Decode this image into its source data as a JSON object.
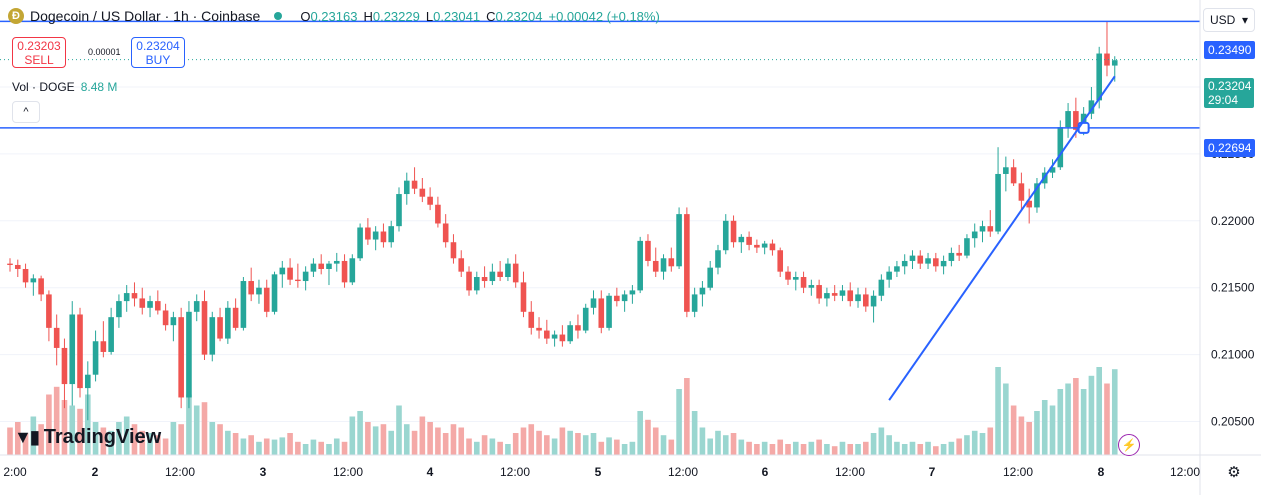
{
  "header": {
    "coin_glyph": "Ð",
    "title": "Dogecoin / US Dollar · 1h · Coinbase",
    "ohlc": [
      {
        "k": "O",
        "v": "0.23163"
      },
      {
        "k": "H",
        "v": "0.23229"
      },
      {
        "k": "L",
        "v": "0.23041"
      },
      {
        "k": "C",
        "v": "0.23204"
      },
      {
        "k": "",
        "v": "+0.00042 (+0.18%)"
      }
    ]
  },
  "trade": {
    "sell_price": "0.23203",
    "sell_label": "SELL",
    "buy_price": "0.23204",
    "buy_label": "BUY",
    "spread": "0.00001"
  },
  "volume_legend": {
    "label": "Vol · DOGE",
    "value": "8.48 M"
  },
  "currency": "USD",
  "collapse_glyph": "^",
  "gear_glyph": "⚙",
  "flash_glyph": "⚡",
  "branding": {
    "mark": "𝟭𝟳",
    "name": "TradingView"
  },
  "price_labels": {
    "upper_line": "0.23490",
    "lower_line": "0.22694",
    "last_price": "0.23204",
    "countdown": "29:04"
  },
  "colors": {
    "up": "#26a69a",
    "down": "#ef5350",
    "vol_up": "#9ad6d0",
    "vol_down": "#f4a9a7",
    "line": "#2962ff"
  },
  "chart_data": {
    "type": "candlestick",
    "symbol": "DOGE/USD",
    "interval": "1h",
    "ylim": [
      0.2025,
      0.2365
    ],
    "y_ticks": [
      0.205,
      0.21,
      0.215,
      0.22,
      0.225,
      0.23
    ],
    "y_tick_labels": [
      "0.20500",
      "0.21000",
      "0.21500",
      "0.22000",
      "0.22500",
      "0.23000"
    ],
    "x_ticks": [
      "2:00",
      "2",
      "12:00",
      "3",
      "12:00",
      "4",
      "12:00",
      "5",
      "12:00",
      "6",
      "12:00",
      "7",
      "12:00",
      "8",
      "12:00"
    ],
    "horizontal_lines": [
      0.2349,
      0.22694
    ],
    "trendline": {
      "from_bar": 113,
      "from": 0.2066,
      "to_bar": 142,
      "to": 0.2308
    },
    "last_price": 0.23204,
    "candles": [
      [
        0.2168,
        0.2172,
        0.2162,
        0.2167
      ],
      [
        0.2167,
        0.2171,
        0.2158,
        0.2164
      ],
      [
        0.2164,
        0.2168,
        0.215,
        0.2154
      ],
      [
        0.2154,
        0.216,
        0.2144,
        0.2157
      ],
      [
        0.2157,
        0.2159,
        0.214,
        0.2145
      ],
      [
        0.2145,
        0.2148,
        0.211,
        0.212
      ],
      [
        0.212,
        0.213,
        0.2092,
        0.2105
      ],
      [
        0.2105,
        0.2112,
        0.206,
        0.2078
      ],
      [
        0.2078,
        0.214,
        0.2062,
        0.213
      ],
      [
        0.213,
        0.2135,
        0.2068,
        0.2075
      ],
      [
        0.2075,
        0.2095,
        0.2051,
        0.2085
      ],
      [
        0.2085,
        0.2118,
        0.208,
        0.211
      ],
      [
        0.211,
        0.2125,
        0.2098,
        0.2102
      ],
      [
        0.2102,
        0.2135,
        0.21,
        0.2128
      ],
      [
        0.2128,
        0.2145,
        0.212,
        0.214
      ],
      [
        0.214,
        0.2152,
        0.2132,
        0.2146
      ],
      [
        0.2146,
        0.2154,
        0.2136,
        0.2142
      ],
      [
        0.2142,
        0.215,
        0.213,
        0.2135
      ],
      [
        0.2135,
        0.2144,
        0.2128,
        0.214
      ],
      [
        0.214,
        0.2148,
        0.213,
        0.2133
      ],
      [
        0.2133,
        0.2138,
        0.2118,
        0.2122
      ],
      [
        0.2122,
        0.2132,
        0.211,
        0.2128
      ],
      [
        0.2128,
        0.2135,
        0.206,
        0.2068
      ],
      [
        0.2068,
        0.214,
        0.206,
        0.2132
      ],
      [
        0.2132,
        0.2145,
        0.2125,
        0.214
      ],
      [
        0.214,
        0.2148,
        0.2096,
        0.21
      ],
      [
        0.21,
        0.2132,
        0.2095,
        0.2128
      ],
      [
        0.2128,
        0.2135,
        0.211,
        0.2112
      ],
      [
        0.2112,
        0.214,
        0.2108,
        0.2135
      ],
      [
        0.2135,
        0.2142,
        0.2118,
        0.212
      ],
      [
        0.212,
        0.2158,
        0.2118,
        0.2155
      ],
      [
        0.2155,
        0.2165,
        0.214,
        0.2145
      ],
      [
        0.2145,
        0.2156,
        0.2138,
        0.215
      ],
      [
        0.215,
        0.2156,
        0.2128,
        0.2132
      ],
      [
        0.2132,
        0.2162,
        0.213,
        0.216
      ],
      [
        0.216,
        0.217,
        0.215,
        0.2165
      ],
      [
        0.2165,
        0.2172,
        0.2152,
        0.2156
      ],
      [
        0.2156,
        0.2168,
        0.215,
        0.2155
      ],
      [
        0.2155,
        0.2166,
        0.2148,
        0.2162
      ],
      [
        0.2162,
        0.2172,
        0.2158,
        0.2168
      ],
      [
        0.2168,
        0.2175,
        0.216,
        0.2164
      ],
      [
        0.2164,
        0.217,
        0.2152,
        0.2168
      ],
      [
        0.2168,
        0.2176,
        0.2162,
        0.217
      ],
      [
        0.217,
        0.2175,
        0.215,
        0.2154
      ],
      [
        0.2154,
        0.2175,
        0.2152,
        0.2172
      ],
      [
        0.2172,
        0.2198,
        0.217,
        0.2195
      ],
      [
        0.2195,
        0.2202,
        0.2182,
        0.2186
      ],
      [
        0.2186,
        0.2196,
        0.2178,
        0.2192
      ],
      [
        0.2192,
        0.2198,
        0.218,
        0.2184
      ],
      [
        0.2184,
        0.22,
        0.218,
        0.2196
      ],
      [
        0.2196,
        0.2225,
        0.2192,
        0.222
      ],
      [
        0.222,
        0.2236,
        0.2212,
        0.223
      ],
      [
        0.223,
        0.224,
        0.222,
        0.2224
      ],
      [
        0.2224,
        0.2232,
        0.2214,
        0.2218
      ],
      [
        0.2218,
        0.2225,
        0.2208,
        0.2212
      ],
      [
        0.2212,
        0.2218,
        0.2195,
        0.2198
      ],
      [
        0.2198,
        0.2205,
        0.218,
        0.2184
      ],
      [
        0.2184,
        0.219,
        0.2168,
        0.2172
      ],
      [
        0.2172,
        0.2178,
        0.2158,
        0.2162
      ],
      [
        0.2162,
        0.2166,
        0.2144,
        0.2148
      ],
      [
        0.2148,
        0.2162,
        0.2145,
        0.2158
      ],
      [
        0.2158,
        0.2166,
        0.215,
        0.2155
      ],
      [
        0.2155,
        0.2168,
        0.2152,
        0.2162
      ],
      [
        0.2162,
        0.217,
        0.2155,
        0.2158
      ],
      [
        0.2158,
        0.2172,
        0.2155,
        0.2168
      ],
      [
        0.2168,
        0.2175,
        0.215,
        0.2154
      ],
      [
        0.2154,
        0.2162,
        0.2128,
        0.2132
      ],
      [
        0.2132,
        0.214,
        0.2115,
        0.212
      ],
      [
        0.212,
        0.2128,
        0.2112,
        0.2118
      ],
      [
        0.2118,
        0.2126,
        0.2108,
        0.2112
      ],
      [
        0.2112,
        0.2118,
        0.2106,
        0.2115
      ],
      [
        0.2115,
        0.2122,
        0.2106,
        0.211
      ],
      [
        0.211,
        0.2125,
        0.2108,
        0.2122
      ],
      [
        0.2122,
        0.213,
        0.2112,
        0.2118
      ],
      [
        0.2118,
        0.2138,
        0.2116,
        0.2135
      ],
      [
        0.2135,
        0.2148,
        0.213,
        0.2142
      ],
      [
        0.2142,
        0.2148,
        0.2116,
        0.212
      ],
      [
        0.212,
        0.2146,
        0.2118,
        0.2144
      ],
      [
        0.2144,
        0.215,
        0.2136,
        0.214
      ],
      [
        0.214,
        0.2148,
        0.2132,
        0.2145
      ],
      [
        0.2145,
        0.2152,
        0.2138,
        0.2148
      ],
      [
        0.2148,
        0.2188,
        0.2146,
        0.2185
      ],
      [
        0.2185,
        0.219,
        0.2166,
        0.217
      ],
      [
        0.217,
        0.218,
        0.2158,
        0.2162
      ],
      [
        0.2162,
        0.2175,
        0.2156,
        0.2172
      ],
      [
        0.2172,
        0.218,
        0.2162,
        0.2166
      ],
      [
        0.2166,
        0.221,
        0.2164,
        0.2205
      ],
      [
        0.2205,
        0.221,
        0.2128,
        0.2132
      ],
      [
        0.2132,
        0.215,
        0.2128,
        0.2145
      ],
      [
        0.2145,
        0.2155,
        0.2136,
        0.215
      ],
      [
        0.215,
        0.217,
        0.2148,
        0.2165
      ],
      [
        0.2165,
        0.2182,
        0.216,
        0.2178
      ],
      [
        0.2178,
        0.2205,
        0.2175,
        0.22
      ],
      [
        0.22,
        0.2204,
        0.218,
        0.2184
      ],
      [
        0.2184,
        0.219,
        0.2176,
        0.2188
      ],
      [
        0.2188,
        0.2192,
        0.2178,
        0.2182
      ],
      [
        0.2182,
        0.2186,
        0.2176,
        0.218
      ],
      [
        0.218,
        0.2185,
        0.2175,
        0.2183
      ],
      [
        0.2183,
        0.2186,
        0.2174,
        0.2178
      ],
      [
        0.2178,
        0.218,
        0.2158,
        0.2162
      ],
      [
        0.2162,
        0.2166,
        0.2152,
        0.2156
      ],
      [
        0.2156,
        0.2162,
        0.2148,
        0.2158
      ],
      [
        0.2158,
        0.2162,
        0.2146,
        0.215
      ],
      [
        0.215,
        0.2156,
        0.2144,
        0.2152
      ],
      [
        0.2152,
        0.2156,
        0.2138,
        0.2142
      ],
      [
        0.2142,
        0.215,
        0.2136,
        0.2146
      ],
      [
        0.2146,
        0.2152,
        0.214,
        0.2144
      ],
      [
        0.2144,
        0.2152,
        0.214,
        0.2148
      ],
      [
        0.2148,
        0.2154,
        0.2136,
        0.214
      ],
      [
        0.214,
        0.215,
        0.2135,
        0.2145
      ],
      [
        0.2145,
        0.215,
        0.2132,
        0.2136
      ],
      [
        0.2136,
        0.2148,
        0.2124,
        0.2144
      ],
      [
        0.2144,
        0.216,
        0.214,
        0.2156
      ],
      [
        0.2156,
        0.2166,
        0.215,
        0.2162
      ],
      [
        0.2162,
        0.217,
        0.2158,
        0.2166
      ],
      [
        0.2166,
        0.2175,
        0.216,
        0.217
      ],
      [
        0.217,
        0.2178,
        0.2164,
        0.2174
      ],
      [
        0.2174,
        0.2178,
        0.2164,
        0.2168
      ],
      [
        0.2168,
        0.2176,
        0.2164,
        0.2172
      ],
      [
        0.2172,
        0.2176,
        0.2162,
        0.2166
      ],
      [
        0.2166,
        0.2174,
        0.216,
        0.217
      ],
      [
        0.217,
        0.218,
        0.2166,
        0.2176
      ],
      [
        0.2176,
        0.2182,
        0.217,
        0.2174
      ],
      [
        0.2174,
        0.219,
        0.2172,
        0.2187
      ],
      [
        0.2187,
        0.2198,
        0.218,
        0.2192
      ],
      [
        0.2192,
        0.22,
        0.2184,
        0.2196
      ],
      [
        0.2196,
        0.2208,
        0.2188,
        0.2192
      ],
      [
        0.2192,
        0.2255,
        0.219,
        0.2235
      ],
      [
        0.2235,
        0.2248,
        0.2222,
        0.224
      ],
      [
        0.224,
        0.2246,
        0.2226,
        0.2228
      ],
      [
        0.2228,
        0.2236,
        0.2208,
        0.2215
      ],
      [
        0.2215,
        0.2224,
        0.2198,
        0.221
      ],
      [
        0.221,
        0.2232,
        0.2206,
        0.2228
      ],
      [
        0.2228,
        0.224,
        0.2224,
        0.2236
      ],
      [
        0.2236,
        0.2246,
        0.2232,
        0.224
      ],
      [
        0.224,
        0.2275,
        0.2238,
        0.227
      ],
      [
        0.227,
        0.2288,
        0.2262,
        0.2282
      ],
      [
        0.2282,
        0.2292,
        0.2262,
        0.2268
      ],
      [
        0.2268,
        0.2285,
        0.2264,
        0.228
      ],
      [
        0.228,
        0.23,
        0.2276,
        0.229
      ],
      [
        0.229,
        0.233,
        0.2284,
        0.2325
      ],
      [
        0.2325,
        0.2349,
        0.2308,
        0.2316
      ],
      [
        0.2316,
        0.2323,
        0.2304,
        0.232
      ]
    ],
    "volumes": [
      0.25,
      0.3,
      0.2,
      0.35,
      0.28,
      0.55,
      0.62,
      0.5,
      0.45,
      0.42,
      0.55,
      0.3,
      0.25,
      0.22,
      0.3,
      0.35,
      0.28,
      0.22,
      0.2,
      0.18,
      0.15,
      0.3,
      0.28,
      0.55,
      0.45,
      0.48,
      0.3,
      0.28,
      0.22,
      0.2,
      0.15,
      0.18,
      0.12,
      0.15,
      0.14,
      0.16,
      0.2,
      0.12,
      0.1,
      0.14,
      0.12,
      0.1,
      0.15,
      0.12,
      0.35,
      0.4,
      0.3,
      0.26,
      0.28,
      0.22,
      0.45,
      0.28,
      0.22,
      0.35,
      0.3,
      0.25,
      0.2,
      0.28,
      0.25,
      0.15,
      0.12,
      0.18,
      0.15,
      0.12,
      0.1,
      0.2,
      0.25,
      0.28,
      0.22,
      0.18,
      0.15,
      0.25,
      0.22,
      0.2,
      0.18,
      0.2,
      0.12,
      0.16,
      0.14,
      0.1,
      0.12,
      0.4,
      0.32,
      0.25,
      0.18,
      0.14,
      0.6,
      0.7,
      0.4,
      0.25,
      0.15,
      0.22,
      0.18,
      0.2,
      0.14,
      0.12,
      0.1,
      0.12,
      0.1,
      0.14,
      0.1,
      0.12,
      0.1,
      0.12,
      0.14,
      0.1,
      0.08,
      0.12,
      0.1,
      0.1,
      0.12,
      0.2,
      0.25,
      0.18,
      0.12,
      0.1,
      0.12,
      0.1,
      0.12,
      0.08,
      0.1,
      0.12,
      0.15,
      0.18,
      0.22,
      0.2,
      0.25,
      0.8,
      0.65,
      0.45,
      0.35,
      0.3,
      0.4,
      0.5,
      0.45,
      0.6,
      0.65,
      0.7,
      0.6,
      0.72,
      0.8,
      0.65,
      0.78,
      0.82
    ]
  }
}
